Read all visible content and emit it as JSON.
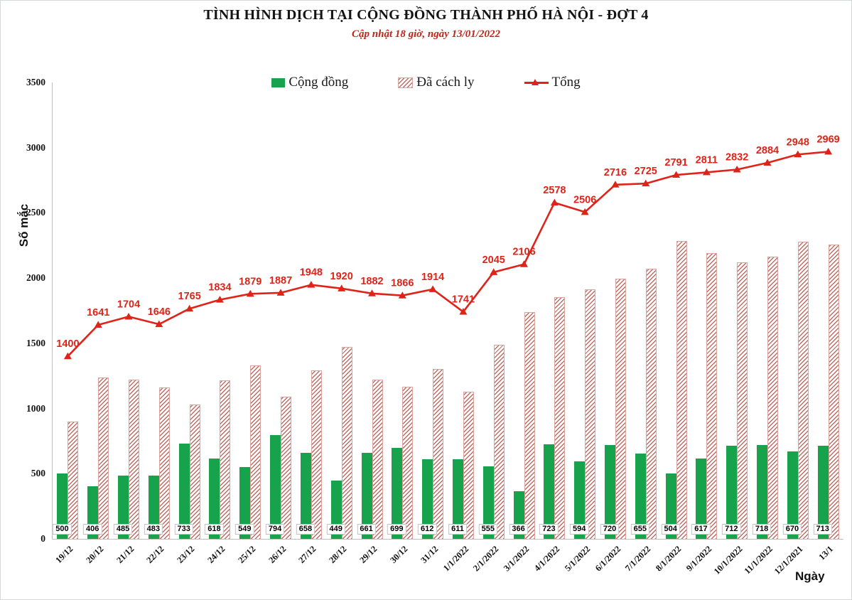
{
  "header": {
    "title": "TÌNH HÌNH DỊCH TẠI CỘNG ĐỒNG THÀNH PHỐ HÀ NỘI - ĐỢT 4",
    "subtitle": "Cập nhật 18 giờ, ngày 13/01/2022"
  },
  "y_axis": {
    "label": "Số mắc",
    "ticks": [
      0,
      500,
      1000,
      1500,
      2000,
      2500,
      3000,
      3500
    ]
  },
  "x_axis": {
    "label": "Ngày"
  },
  "colors": {
    "community_bar": "#17A24C",
    "quarantined_stripe": "#C46B64",
    "quarantined_border": "#D9A49E",
    "total_line": "#E02318",
    "subtitle_red": "#C7211A",
    "axis_gray": "#BFBFBF"
  },
  "chart_data": {
    "type": "combo",
    "title": "TÌNH HÌNH DỊCH TẠI CỘNG ĐỒNG THÀNH PHỐ HÀ NỘI - ĐỢT 4",
    "subtitle": "Cập nhật 18 giờ, ngày 13/01/2022",
    "xlabel": "Ngày",
    "ylabel": "Số mắc",
    "ylim": [
      0,
      3500
    ],
    "yticks": [
      0,
      500,
      1000,
      1500,
      2000,
      2500,
      3000,
      3500
    ],
    "grid": false,
    "legend_position": "top",
    "categories": [
      "19/12",
      "20/12",
      "21/12",
      "22/12",
      "23/12",
      "24/12",
      "25/12",
      "26/12",
      "27/12",
      "28/12",
      "29/12",
      "30/12",
      "31/12",
      "1/1/2022",
      "2/1/2022",
      "3/1/2022",
      "4/1/2022",
      "5/1/2022",
      "6/1/2022",
      "7/1/2022",
      "8/1/2022",
      "9/1/2022",
      "10/1/2022",
      "11/1/2022",
      "12/1/2021",
      "13/1"
    ],
    "series": [
      {
        "name": "Cộng đồng",
        "type": "bar",
        "style": "solid",
        "color": "#17A24C",
        "values": [
          500,
          406,
          485,
          483,
          733,
          618,
          549,
          794,
          658,
          449,
          661,
          699,
          612,
          611,
          555,
          366,
          723,
          594,
          720,
          655,
          504,
          617,
          712,
          718,
          670,
          713
        ],
        "value_labels": "white boxes at bar base"
      },
      {
        "name": "Đã cách ly",
        "type": "bar",
        "style": "hatched",
        "color": "#C46B64",
        "values": [
          900,
          1235,
          1219,
          1163,
          1032,
          1216,
          1330,
          1093,
          1290,
          1471,
          1221,
          1167,
          1302,
          1130,
          1490,
          1740,
          1855,
          1912,
          1996,
          2070,
          2287,
          2194,
          2120,
          2166,
          2278,
          2256
        ]
      },
      {
        "name": "Tổng",
        "type": "line",
        "marker": "triangle",
        "color": "#E02318",
        "values": [
          1400,
          1641,
          1704,
          1646,
          1765,
          1834,
          1879,
          1887,
          1948,
          1920,
          1882,
          1866,
          1914,
          1741,
          2045,
          2106,
          2578,
          2506,
          2716,
          2725,
          2791,
          2811,
          2832,
          2884,
          2948,
          2969
        ],
        "value_labels": "above points"
      }
    ]
  }
}
